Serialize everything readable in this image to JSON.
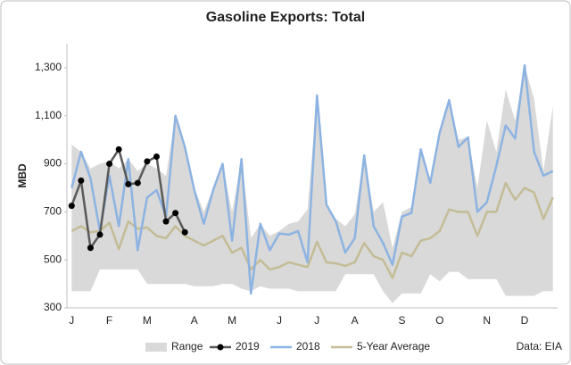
{
  "chart_data": {
    "type": "line",
    "title": "Gasoline Exports: Total",
    "y_label": "MBD",
    "source": "Data: EIA",
    "categories": [
      "J",
      null,
      null,
      null,
      "F",
      null,
      null,
      null,
      "M",
      null,
      null,
      null,
      null,
      "A",
      null,
      null,
      null,
      "M",
      null,
      null,
      null,
      null,
      "J",
      null,
      null,
      null,
      "J",
      null,
      null,
      null,
      "A",
      null,
      null,
      null,
      null,
      "S",
      null,
      null,
      null,
      "O",
      null,
      null,
      null,
      null,
      "N",
      null,
      null,
      null,
      "D",
      null,
      null,
      null
    ],
    "series": [
      {
        "name": "Range",
        "color": "#d9d9d9",
        "band": true,
        "high": [
          980,
          950,
          880,
          900,
          910,
          880,
          920,
          870,
          900,
          880,
          850,
          1100,
          970,
          800,
          700,
          800,
          900,
          700,
          920,
          590,
          650,
          600,
          620,
          650,
          660,
          710,
          1185,
          730,
          670,
          640,
          690,
          935,
          700,
          740,
          550,
          700,
          720,
          960,
          820,
          1040,
          1165,
          1000,
          1010,
          800,
          1080,
          950,
          1210,
          1080,
          1310,
          1170,
          870,
          1140
        ],
        "low": [
          370,
          370,
          370,
          460,
          460,
          460,
          460,
          460,
          400,
          400,
          400,
          400,
          400,
          390,
          390,
          390,
          400,
          400,
          380,
          370,
          390,
          380,
          380,
          380,
          370,
          370,
          370,
          370,
          370,
          440,
          440,
          440,
          440,
          370,
          320,
          360,
          360,
          360,
          440,
          410,
          450,
          450,
          420,
          420,
          420,
          420,
          350,
          350,
          350,
          350,
          370,
          370
        ]
      },
      {
        "name": "2019",
        "color": "#595959",
        "marker_color": "#000000",
        "markers": true,
        "values": [
          725,
          830,
          550,
          605,
          900,
          960,
          815,
          820,
          910,
          930,
          660,
          695,
          615,
          null,
          null,
          null,
          null,
          null,
          null,
          null,
          null,
          null,
          null,
          null,
          null,
          null,
          null,
          null,
          null,
          null,
          null,
          null,
          null,
          null,
          null,
          null,
          null,
          null,
          null,
          null,
          null,
          null,
          null,
          null,
          null,
          null,
          null,
          null,
          null,
          null,
          null,
          null
        ]
      },
      {
        "name": "2018",
        "color": "#8db3e2",
        "values": [
          800,
          950,
          840,
          620,
          850,
          640,
          920,
          540,
          760,
          790,
          680,
          1100,
          970,
          790,
          650,
          790,
          900,
          580,
          920,
          360,
          650,
          540,
          610,
          605,
          620,
          490,
          1185,
          730,
          660,
          530,
          590,
          935,
          640,
          570,
          480,
          680,
          695,
          960,
          820,
          1030,
          1165,
          970,
          1010,
          700,
          740,
          890,
          1060,
          1005,
          1310,
          950,
          850,
          870
        ]
      },
      {
        "name": "5-Year Average",
        "color": "#c4bc96",
        "values": [
          620,
          640,
          615,
          620,
          655,
          545,
          660,
          630,
          635,
          600,
          590,
          640,
          600,
          580,
          560,
          580,
          600,
          530,
          550,
          460,
          500,
          460,
          470,
          490,
          480,
          470,
          575,
          490,
          485,
          475,
          490,
          570,
          515,
          500,
          425,
          530,
          515,
          580,
          590,
          620,
          710,
          700,
          700,
          600,
          700,
          700,
          820,
          750,
          800,
          780,
          670,
          760
        ]
      }
    ],
    "ylim": [
      300,
      1400
    ],
    "yticks": [
      300,
      500,
      700,
      900,
      {
        "value": 1100,
        "label": "1,100"
      },
      {
        "value": 1300,
        "label": "1,300"
      }
    ],
    "grid": false
  }
}
